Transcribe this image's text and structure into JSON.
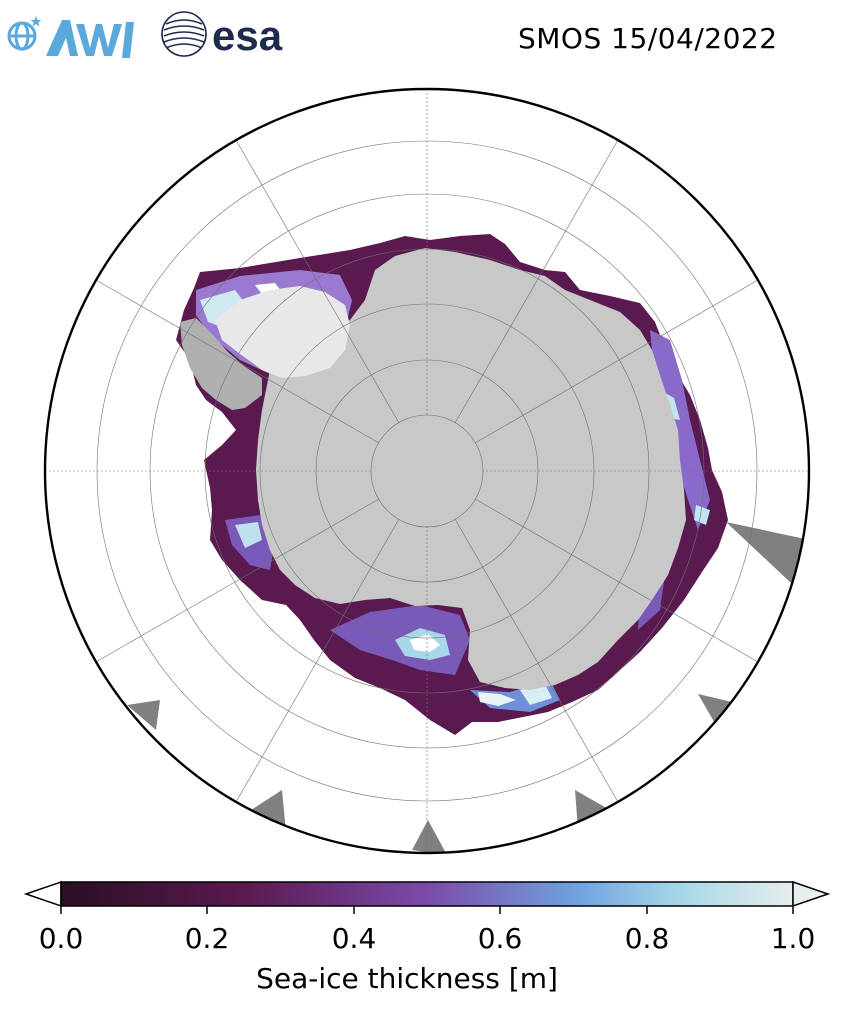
{
  "header": {
    "title": "SMOS 15/04/2022",
    "logos": [
      {
        "name": "AWI",
        "text": "AWI",
        "color": "#5aa8dc"
      },
      {
        "name": "esa",
        "text": "esa",
        "color": "#1f2a4f"
      }
    ]
  },
  "map": {
    "projection": "south-polar-stereographic",
    "land_color": "#c8c8c8",
    "ice_shelf_color": "#e6e6e6",
    "no_data_color": "#808080",
    "gridlines": true
  },
  "colorbar": {
    "label": "Sea-ice thickness [m]",
    "min": 0.0,
    "max": 1.0,
    "extend": "both",
    "ticks": [
      "0.0",
      "0.2",
      "0.4",
      "0.6",
      "0.8",
      "1.0"
    ],
    "colormap_stops": [
      "#2a0f24",
      "#5a1a4f",
      "#7b4aaa",
      "#6fa0e0",
      "#a8d8e6",
      "#e6eeee"
    ]
  }
}
